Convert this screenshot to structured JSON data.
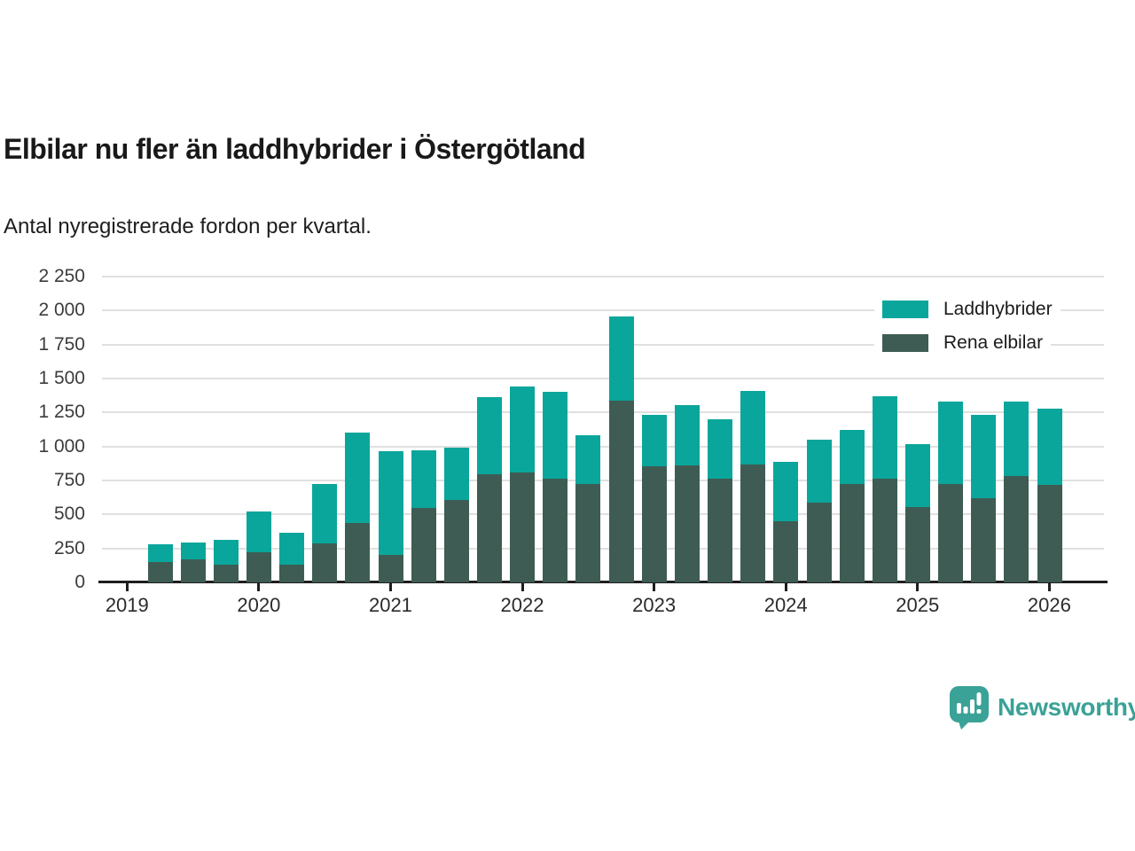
{
  "header": {
    "title": "Elbilar nu fler än laddhybrider i Östergötland",
    "subtitle": "Antal nyregistrerade fordon per kvartal."
  },
  "footer": {
    "brand": "Newsworthy"
  },
  "colors": {
    "laddhybrider": "#0aa69b",
    "rena_elbilar": "#3e5c53",
    "grid": "#e0e0e0",
    "axis": "#1f1f1f",
    "brand_teal": "#3aa296"
  },
  "chart_data": {
    "type": "bar",
    "stacked": true,
    "stack_bottom": "Rena elbilar",
    "title": "Elbilar nu fler än laddhybrider i Östergötland",
    "subtitle": "Antal nyregistrerade fordon per kvartal.",
    "xlabel": "",
    "ylabel": "",
    "ylim": [
      0,
      2250
    ],
    "grid": "horizontal",
    "legend_position": "top-right",
    "categories": [
      "2019 Q2",
      "2019 Q3",
      "2019 Q4",
      "2020 Q1",
      "2020 Q2",
      "2020 Q3",
      "2020 Q4",
      "2021 Q1",
      "2021 Q2",
      "2021 Q3",
      "2021 Q4",
      "2022 Q1",
      "2022 Q2",
      "2022 Q3",
      "2022 Q4",
      "2023 Q1",
      "2023 Q2",
      "2023 Q3",
      "2023 Q4",
      "2024 Q1",
      "2024 Q2",
      "2024 Q3",
      "2024 Q4",
      "2025 Q1",
      "2025 Q2",
      "2025 Q3",
      "2025 Q4",
      "2026 Q1"
    ],
    "series": [
      {
        "name": "Laddhybrider",
        "color": "#0aa69b",
        "values": [
          130,
          125,
          185,
          305,
          235,
          440,
          665,
          760,
          425,
          385,
          565,
          630,
          640,
          355,
          620,
          375,
          445,
          440,
          545,
          440,
          460,
          400,
          605,
          460,
          605,
          615,
          545,
          560
        ]
      },
      {
        "name": "Rena elbilar",
        "color": "#3e5c53",
        "values": [
          150,
          170,
          130,
          220,
          130,
          285,
          440,
          205,
          550,
          605,
          795,
          810,
          765,
          725,
          1335,
          855,
          860,
          760,
          865,
          450,
          590,
          725,
          765,
          555,
          725,
          620,
          785,
          720
        ]
      }
    ],
    "totals": [
      280,
      295,
      315,
      525,
      365,
      725,
      1105,
      965,
      975,
      990,
      1360,
      1440,
      1405,
      1080,
      1955,
      1230,
      1305,
      1200,
      1410,
      890,
      1050,
      1125,
      1370,
      1015,
      1330,
      1235,
      1330,
      1280
    ],
    "yticks": [
      {
        "value": 0,
        "label": "0"
      },
      {
        "value": 250,
        "label": "250"
      },
      {
        "value": 500,
        "label": "500"
      },
      {
        "value": 750,
        "label": "750"
      },
      {
        "value": 1000,
        "label": "1 000"
      },
      {
        "value": 1250,
        "label": "1 250"
      },
      {
        "value": 1500,
        "label": "1 500"
      },
      {
        "value": 1750,
        "label": "1 750"
      },
      {
        "value": 2000,
        "label": "2 000"
      },
      {
        "value": 2250,
        "label": "2 250"
      }
    ],
    "xticks": [
      "2019",
      "2020",
      "2021",
      "2022",
      "2023",
      "2024",
      "2025",
      "2026"
    ]
  }
}
